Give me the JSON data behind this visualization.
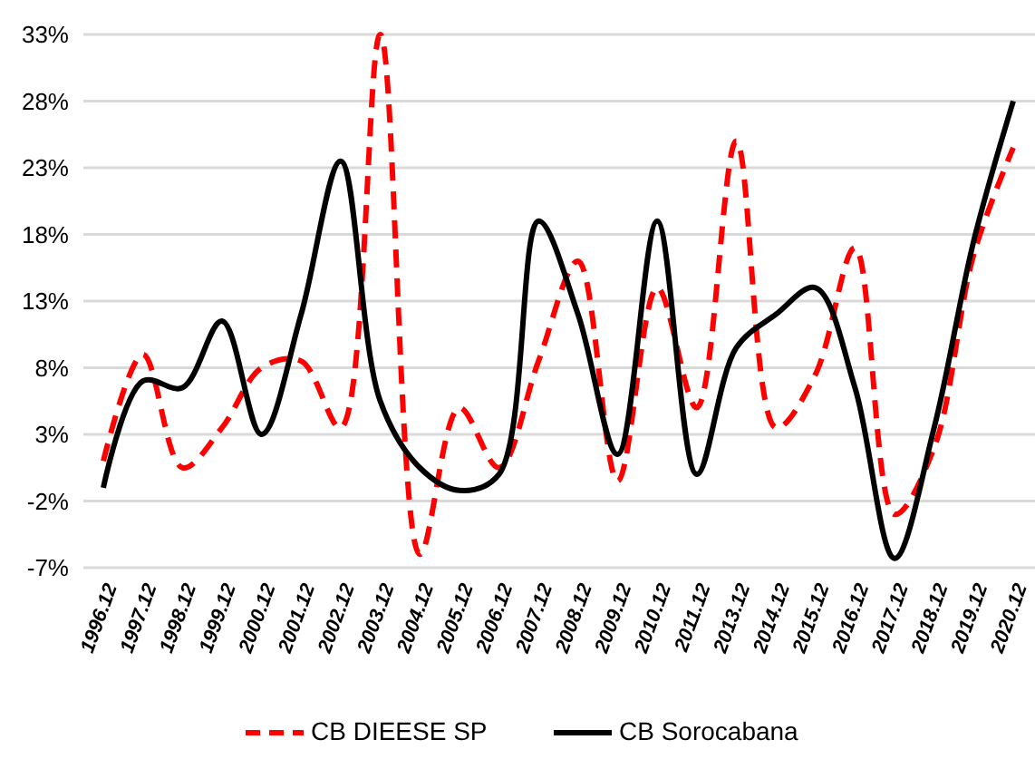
{
  "chart_data": {
    "type": "line",
    "categories": [
      "1996.12",
      "1997.12",
      "1998.12",
      "1999.12",
      "2000.12",
      "2001.12",
      "2002.12",
      "2003.12",
      "2004.12",
      "2005.12",
      "2006.12",
      "2007.12",
      "2008.12",
      "2009.12",
      "2010.12",
      "2011.12",
      "2013.12",
      "2014.12",
      "2015.12",
      "2016.12",
      "2017.12",
      "2018.12",
      "2019.12",
      "2020.12"
    ],
    "series": [
      {
        "name": "CB DIEESE SP",
        "color": "#ff0000",
        "line_style": "dashed",
        "values": [
          1,
          9,
          0.5,
          3.5,
          8,
          8.5,
          3.5,
          33,
          -6,
          5,
          0.5,
          8.5,
          16,
          -0.5,
          14,
          5,
          25,
          3.5,
          7.5,
          17,
          -3,
          2,
          16.5,
          24.5
        ]
      },
      {
        "name": "CB Sorocabana",
        "color": "#000000",
        "line_style": "solid",
        "values": [
          -1,
          7,
          6.5,
          11.5,
          3,
          12,
          23.5,
          5.5,
          0.5,
          -1.2,
          0,
          19,
          12,
          1.5,
          19,
          0,
          9.5,
          12,
          14,
          6.5,
          -6.3,
          3.5,
          17.5,
          28
        ]
      }
    ],
    "ylim": [
      -7,
      33
    ],
    "yticks": [
      {
        "value": -7,
        "label": "-7%"
      },
      {
        "value": -2,
        "label": "-2%"
      },
      {
        "value": 3,
        "label": "3%"
      },
      {
        "value": 8,
        "label": "8%"
      },
      {
        "value": 13,
        "label": "13%"
      },
      {
        "value": 18,
        "label": "18%"
      },
      {
        "value": 23,
        "label": "23%"
      },
      {
        "value": 28,
        "label": "28%"
      },
      {
        "value": 33,
        "label": "33%"
      }
    ],
    "grid": "y",
    "legend": "bottom",
    "marker": "none"
  }
}
